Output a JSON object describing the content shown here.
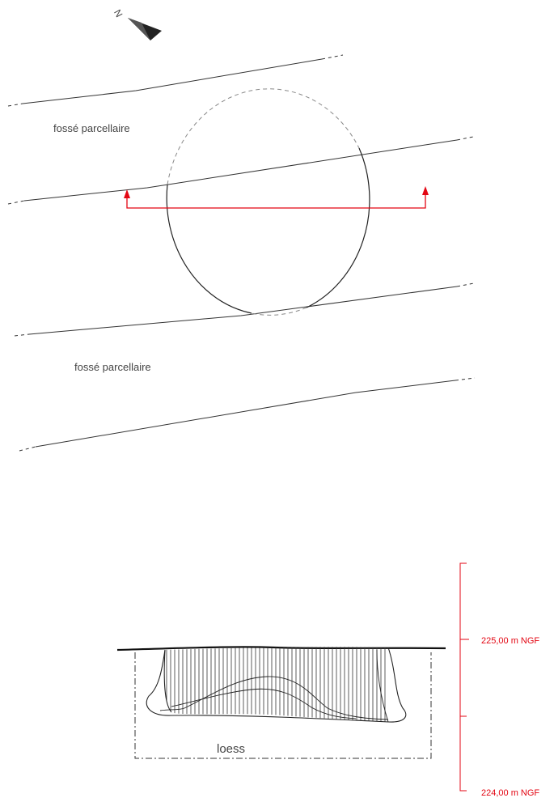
{
  "plan": {
    "ditch_label_upper": "fossé parcellaire",
    "ditch_label_lower": "fossé parcellaire",
    "north_letter": "N"
  },
  "section": {
    "loess_label": "loess"
  },
  "scale": {
    "label_upper": "225,00 m NGF",
    "label_lower": "224,00 m NGF"
  },
  "colors": {
    "line": "#333333",
    "dashed": "#888888",
    "section_marker": "#e30613"
  }
}
